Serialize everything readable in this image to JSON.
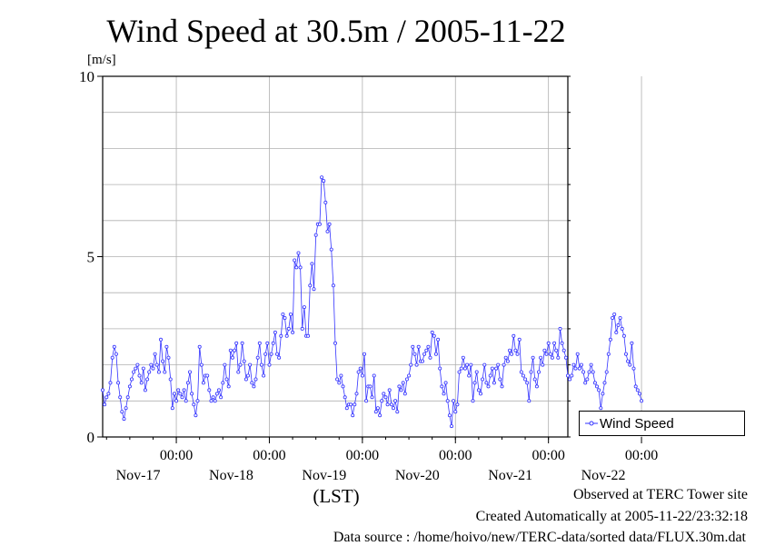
{
  "chart_data": {
    "type": "line",
    "title": "Wind Speed at 30.5m / 2005-11-22",
    "ylabel": "[m/s]",
    "xlabel": "(LST)",
    "ylim": [
      0,
      10
    ],
    "xlim_hours": [
      -19,
      101
    ],
    "yticks": [
      "0",
      "5",
      "10"
    ],
    "xticks": [
      {
        "time": "00:00",
        "date": "Nov-17"
      },
      {
        "time": "00:00",
        "date": "Nov-18"
      },
      {
        "time": "00:00",
        "date": "Nov-19"
      },
      {
        "time": "00:00",
        "date": "Nov-20"
      },
      {
        "time": "00:00",
        "date": "Nov-21"
      },
      {
        "time": "00:00",
        "date": "Nov-22"
      }
    ],
    "grid": true,
    "legend_position": "bottom-right",
    "series": [
      {
        "name": "Wind Speed",
        "color": "#3333ff",
        "start_hour": -19,
        "step_hours": 0.5,
        "values": [
          1.3,
          0.9,
          1.1,
          1.2,
          1.5,
          2.2,
          2.5,
          2.3,
          1.5,
          1.1,
          0.7,
          0.5,
          0.8,
          1.1,
          1.4,
          1.6,
          1.8,
          1.9,
          2.0,
          1.7,
          1.5,
          1.9,
          1.3,
          1.6,
          1.8,
          2.0,
          1.9,
          2.3,
          2.0,
          1.8,
          2.7,
          2.1,
          1.8,
          2.5,
          2.2,
          1.6,
          0.8,
          1.2,
          1.0,
          1.3,
          1.2,
          1.1,
          1.3,
          1.0,
          1.5,
          1.8,
          1.2,
          0.9,
          0.6,
          1.0,
          2.5,
          2.0,
          1.5,
          1.7,
          1.7,
          1.3,
          1.0,
          1.1,
          1.0,
          1.2,
          1.3,
          1.1,
          1.5,
          2.0,
          1.6,
          1.4,
          2.4,
          2.2,
          2.4,
          2.6,
          1.8,
          2.0,
          2.6,
          2.1,
          1.6,
          1.7,
          2.0,
          1.5,
          1.4,
          1.6,
          2.2,
          2.6,
          2.0,
          1.7,
          2.3,
          2.6,
          2.0,
          2.3,
          2.6,
          2.9,
          2.3,
          2.2,
          2.8,
          3.4,
          3.3,
          2.8,
          3.0,
          3.4,
          2.9,
          4.9,
          4.7,
          5.1,
          4.7,
          3.0,
          3.6,
          2.8,
          2.8,
          4.2,
          4.8,
          4.1,
          5.6,
          5.9,
          5.9,
          7.2,
          7.1,
          6.5,
          5.7,
          5.9,
          5.2,
          4.2,
          2.6,
          1.6,
          1.5,
          1.7,
          1.4,
          1.1,
          0.8,
          0.9,
          0.9,
          0.6,
          0.9,
          1.2,
          1.8,
          1.9,
          1.7,
          2.3,
          1.0,
          1.4,
          1.4,
          1.1,
          1.7,
          0.7,
          0.8,
          0.6,
          1.0,
          1.2,
          1.1,
          0.9,
          1.3,
          0.9,
          0.8,
          1.0,
          0.7,
          1.4,
          1.3,
          1.5,
          1.2,
          1.6,
          1.7,
          2.0,
          2.5,
          2.3,
          2.0,
          2.5,
          2.1,
          2.1,
          2.3,
          2.4,
          2.5,
          2.2,
          2.9,
          2.8,
          2.3,
          2.7,
          1.9,
          1.4,
          1.2,
          1.5,
          1.0,
          0.6,
          0.3,
          1.0,
          0.7,
          0.9,
          1.8,
          1.9,
          2.2,
          1.9,
          2.0,
          1.7,
          2.0,
          1.0,
          1.5,
          1.8,
          1.3,
          1.2,
          1.6,
          2.0,
          1.5,
          1.4,
          1.7,
          1.9,
          1.5,
          1.9,
          2.0,
          1.6,
          1.4,
          2.0,
          2.2,
          2.1,
          2.4,
          2.3,
          2.8,
          2.4,
          2.3,
          2.7,
          1.8,
          1.7,
          1.6,
          1.5,
          1.0,
          1.8,
          2.2,
          1.6,
          1.4,
          1.8,
          2.2,
          2.0,
          2.4,
          2.3,
          2.6,
          2.3,
          2.2,
          2.6,
          2.4,
          2.2,
          3.0,
          2.6,
          2.4,
          2.2,
          1.7,
          1.6,
          1.7,
          2.0,
          1.9,
          2.3,
          1.9,
          2.0,
          1.8,
          1.5,
          1.6,
          1.8,
          2.0,
          1.8,
          1.5,
          1.4,
          1.3,
          0.8,
          1.2,
          1.5,
          1.8,
          2.3,
          2.7,
          3.3,
          3.4,
          2.9,
          3.1,
          3.3,
          3.0,
          2.8,
          2.3,
          2.1,
          2.0,
          2.6,
          1.9,
          1.4,
          1.3,
          1.2,
          1.0
        ]
      }
    ]
  },
  "footer": {
    "line1": "Observed at TERC Tower site",
    "line2": "Created Automatically at 2005-11-22/23:32:18",
    "line3": "Data source : /home/hoivo/new/TERC-data/sorted  data/FLUX.30m.dat"
  }
}
